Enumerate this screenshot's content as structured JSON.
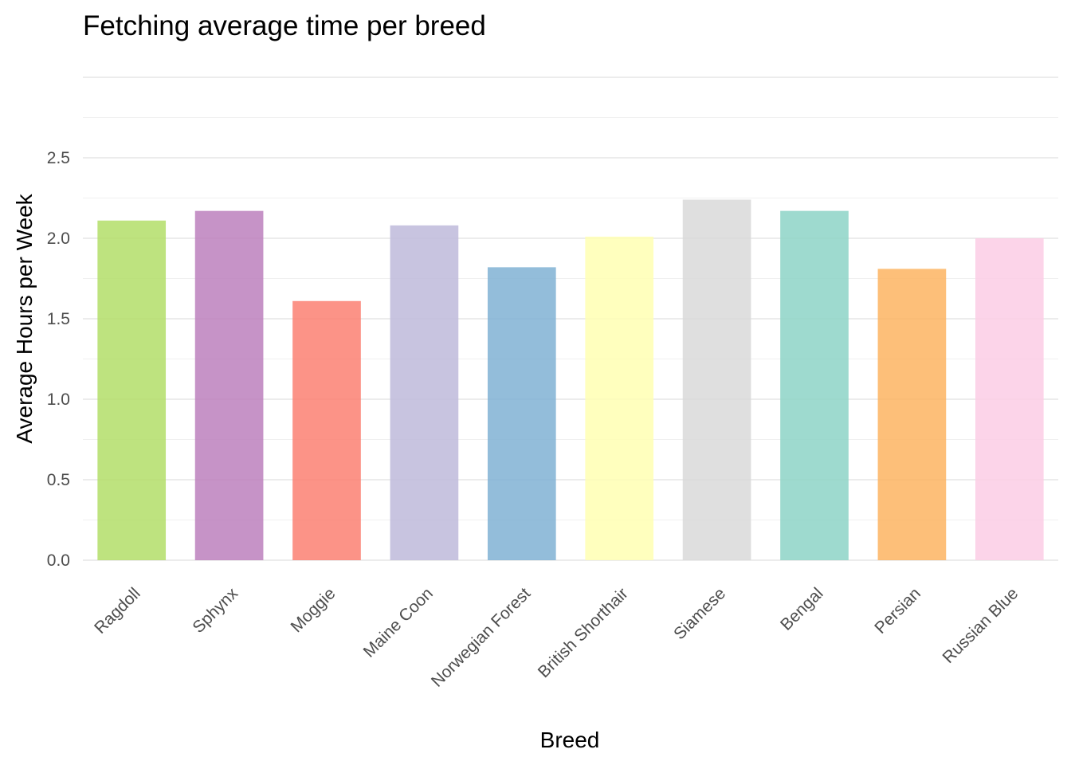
{
  "chart_data": {
    "type": "bar",
    "title": "Fetching average time per breed",
    "xlabel": "Breed",
    "ylabel": "Average Hours per Week",
    "categories": [
      "Ragdoll",
      "Sphynx",
      "Moggie",
      "Maine Coon",
      "Norwegian Forest",
      "British Shorthair",
      "Siamese",
      "Bengal",
      "Persian",
      "Russian Blue"
    ],
    "values": [
      2.11,
      2.17,
      1.61,
      2.08,
      1.82,
      2.01,
      2.24,
      2.17,
      1.81,
      2.0
    ],
    "colors": [
      "#B3DE69",
      "#BC80BD",
      "#FB8072",
      "#BEBADA",
      "#80B1D3",
      "#FFFFB3",
      "#D9D9D9",
      "#8DD3C7",
      "#FDB462",
      "#FCCDE5"
    ],
    "ylim": [
      0,
      3.0
    ],
    "yticks": [
      "0.0",
      "0.5",
      "1.0",
      "1.5",
      "2.0",
      "2.5"
    ],
    "grid": true,
    "legend": "none"
  }
}
